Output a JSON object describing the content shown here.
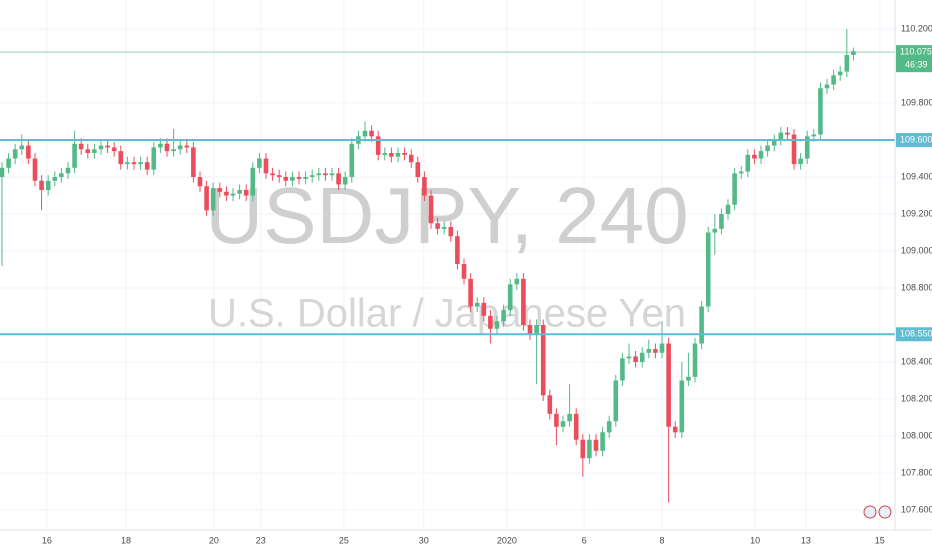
{
  "chart_data": {
    "type": "candlestick",
    "title": "USDJPY, 240",
    "subtitle": "U.S. Dollar / Japanese Yen",
    "up_color": "#53b987",
    "down_color": "#eb4d5c",
    "open": [
      109.4,
      109.45,
      109.5,
      109.55,
      109.57,
      109.5,
      109.38,
      109.33,
      109.38,
      109.4,
      109.42,
      109.45,
      109.58,
      109.55,
      109.53,
      109.55,
      109.57,
      109.56,
      109.54,
      109.47,
      109.48,
      109.47,
      109.48,
      109.44,
      109.56,
      109.58,
      109.54,
      109.55,
      109.57,
      109.56,
      109.4,
      109.35,
      109.22,
      109.34,
      109.32,
      109.3,
      109.31,
      109.33,
      109.3,
      109.45,
      109.5,
      109.42,
      109.41,
      109.4,
      109.38,
      109.4,
      109.39,
      109.4,
      109.41,
      109.42,
      109.41,
      109.42,
      109.36,
      109.4,
      109.58,
      109.62,
      109.65,
      109.62,
      109.52,
      109.53,
      109.51,
      109.53,
      109.52,
      109.48,
      109.4,
      109.3,
      109.15,
      109.12,
      109.13,
      109.08,
      108.93,
      108.85,
      108.7,
      108.72,
      108.65,
      108.58,
      108.62,
      108.68,
      108.82,
      108.85,
      108.6,
      108.55,
      108.6,
      108.22,
      108.12,
      108.05,
      108.08,
      108.12,
      107.98,
      107.88,
      107.98,
      107.92,
      108.02,
      108.08,
      108.3,
      108.42,
      108.43,
      108.4,
      108.45,
      108.47,
      108.45,
      108.5,
      108.05,
      108.02,
      108.3,
      108.32,
      108.5,
      108.7,
      109.1,
      109.12,
      109.2,
      109.25,
      109.42,
      109.43,
      109.52,
      109.5,
      109.54,
      109.57,
      109.6,
      109.64,
      109.63,
      109.47,
      109.5,
      109.62,
      109.63,
      109.88,
      109.9,
      109.95,
      109.97,
      110.06
    ],
    "high": [
      109.48,
      109.53,
      109.58,
      109.63,
      109.6,
      109.53,
      109.41,
      109.41,
      109.43,
      109.45,
      109.48,
      109.65,
      109.61,
      109.58,
      109.58,
      109.6,
      109.6,
      109.59,
      109.57,
      109.51,
      109.51,
      109.51,
      109.51,
      109.59,
      109.61,
      109.61,
      109.66,
      109.6,
      109.6,
      109.59,
      109.43,
      109.38,
      109.37,
      109.37,
      109.35,
      109.34,
      109.36,
      109.36,
      109.48,
      109.53,
      109.53,
      109.45,
      109.44,
      109.43,
      109.43,
      109.43,
      109.43,
      109.44,
      109.45,
      109.45,
      109.45,
      109.45,
      109.43,
      109.61,
      109.65,
      109.7,
      109.68,
      109.65,
      109.56,
      109.56,
      109.56,
      109.56,
      109.55,
      109.51,
      109.43,
      109.33,
      109.18,
      109.16,
      109.16,
      109.11,
      108.96,
      108.88,
      108.75,
      108.75,
      108.68,
      108.65,
      108.71,
      108.85,
      108.88,
      108.88,
      108.63,
      108.63,
      108.63,
      108.25,
      108.15,
      108.11,
      108.28,
      108.15,
      108.01,
      108.01,
      108.01,
      108.05,
      108.11,
      108.33,
      108.45,
      108.5,
      108.46,
      108.48,
      108.52,
      108.5,
      108.62,
      108.53,
      108.08,
      108.4,
      108.45,
      108.53,
      108.73,
      109.13,
      109.2,
      109.23,
      109.28,
      109.45,
      109.46,
      109.55,
      109.55,
      109.57,
      109.6,
      109.63,
      109.67,
      109.67,
      109.66,
      109.53,
      109.65,
      109.66,
      109.91,
      109.93,
      109.98,
      110.0,
      110.2,
      110.1
    ],
    "low": [
      108.92,
      109.42,
      109.47,
      109.52,
      109.47,
      109.35,
      109.22,
      109.3,
      109.35,
      109.37,
      109.39,
      109.42,
      109.52,
      109.5,
      109.5,
      109.52,
      109.53,
      109.51,
      109.44,
      109.44,
      109.44,
      109.44,
      109.41,
      109.41,
      109.53,
      109.51,
      109.51,
      109.52,
      109.53,
      109.37,
      109.32,
      109.19,
      109.19,
      109.29,
      109.27,
      109.27,
      109.28,
      109.27,
      109.27,
      109.42,
      109.39,
      109.38,
      109.37,
      109.35,
      109.35,
      109.36,
      109.36,
      109.37,
      109.38,
      109.38,
      109.38,
      109.33,
      109.33,
      109.37,
      109.55,
      109.59,
      109.59,
      109.49,
      109.49,
      109.48,
      109.48,
      109.49,
      109.45,
      109.37,
      109.27,
      109.12,
      109.09,
      109.09,
      109.05,
      108.9,
      108.82,
      108.67,
      108.67,
      108.62,
      108.5,
      108.55,
      108.59,
      108.65,
      108.79,
      108.57,
      108.52,
      108.28,
      108.19,
      108.09,
      107.95,
      108.02,
      108.05,
      107.95,
      107.78,
      107.85,
      107.89,
      107.89,
      107.99,
      108.05,
      108.27,
      108.39,
      108.37,
      108.37,
      108.42,
      108.42,
      108.42,
      107.64,
      107.99,
      107.99,
      108.27,
      108.29,
      108.47,
      108.67,
      108.98,
      109.09,
      109.17,
      109.22,
      109.39,
      109.4,
      109.47,
      109.47,
      109.51,
      109.54,
      109.57,
      109.6,
      109.44,
      109.44,
      109.47,
      109.59,
      109.6,
      109.85,
      109.87,
      109.92,
      109.94,
      110.03
    ],
    "close": [
      109.45,
      109.5,
      109.55,
      109.57,
      109.5,
      109.38,
      109.33,
      109.38,
      109.4,
      109.42,
      109.45,
      109.58,
      109.55,
      109.53,
      109.55,
      109.57,
      109.56,
      109.54,
      109.47,
      109.48,
      109.47,
      109.48,
      109.44,
      109.56,
      109.58,
      109.54,
      109.55,
      109.57,
      109.56,
      109.4,
      109.35,
      109.22,
      109.34,
      109.32,
      109.3,
      109.31,
      109.33,
      109.3,
      109.45,
      109.5,
      109.42,
      109.41,
      109.4,
      109.38,
      109.4,
      109.39,
      109.4,
      109.41,
      109.42,
      109.41,
      109.42,
      109.36,
      109.4,
      109.58,
      109.62,
      109.65,
      109.62,
      109.52,
      109.53,
      109.51,
      109.53,
      109.52,
      109.48,
      109.4,
      109.3,
      109.15,
      109.12,
      109.13,
      109.08,
      108.93,
      108.85,
      108.7,
      108.72,
      108.65,
      108.58,
      108.62,
      108.68,
      108.82,
      108.85,
      108.6,
      108.55,
      108.6,
      108.22,
      108.12,
      108.05,
      108.08,
      108.12,
      107.98,
      107.88,
      107.98,
      107.92,
      108.02,
      108.08,
      108.3,
      108.42,
      108.43,
      108.4,
      108.45,
      108.47,
      108.45,
      108.5,
      108.05,
      108.02,
      108.3,
      108.32,
      108.5,
      108.7,
      109.1,
      109.12,
      109.2,
      109.25,
      109.42,
      109.43,
      109.52,
      109.5,
      109.54,
      109.57,
      109.6,
      109.64,
      109.63,
      109.47,
      109.5,
      109.62,
      109.63,
      109.88,
      109.9,
      109.95,
      109.97,
      110.06,
      110.08
    ],
    "xlim": [
      -0.3,
      135.3
    ],
    "xticks": [
      {
        "value": 6.8,
        "label": "16"
      },
      {
        "value": 18.8,
        "label": "18"
      },
      {
        "value": 32.1,
        "label": "20"
      },
      {
        "value": 39.2,
        "label": "23"
      },
      {
        "value": 51.8,
        "label": "25"
      },
      {
        "value": 63.9,
        "label": "30"
      },
      {
        "value": 76.5,
        "label": "2020"
      },
      {
        "value": 88.2,
        "label": "6"
      },
      {
        "value": 100,
        "label": "8"
      },
      {
        "value": 114.1,
        "label": "10"
      },
      {
        "value": 121.8,
        "label": "13"
      },
      {
        "value": 133,
        "label": "15"
      }
    ],
    "ylim": [
      107.492,
      110.357
    ],
    "yticks": [
      {
        "value": 107.6,
        "label": "107.600"
      },
      {
        "value": 107.8,
        "label": "107.800"
      },
      {
        "value": 108.0,
        "label": "108.000"
      },
      {
        "value": 108.2,
        "label": "108.200"
      },
      {
        "value": 108.4,
        "label": "108.400"
      },
      {
        "value": 108.8,
        "label": "108.800"
      },
      {
        "value": 109.0,
        "label": "109.000"
      },
      {
        "value": 109.2,
        "label": "109.200"
      },
      {
        "value": 109.4,
        "label": "109.400"
      },
      {
        "value": 109.8,
        "label": "109.800"
      },
      {
        "value": 110.2,
        "label": "110.200"
      }
    ],
    "grid": true,
    "hlines": [
      {
        "value": 109.6,
        "label": "109.600",
        "color": "#5fbcd3"
      },
      {
        "value": 108.55,
        "label": "108.550",
        "color": "#5fbcd3"
      }
    ],
    "last_price": {
      "value": 110.075,
      "label": "110.075",
      "color": "#53b987"
    },
    "countdown": "46:39"
  }
}
